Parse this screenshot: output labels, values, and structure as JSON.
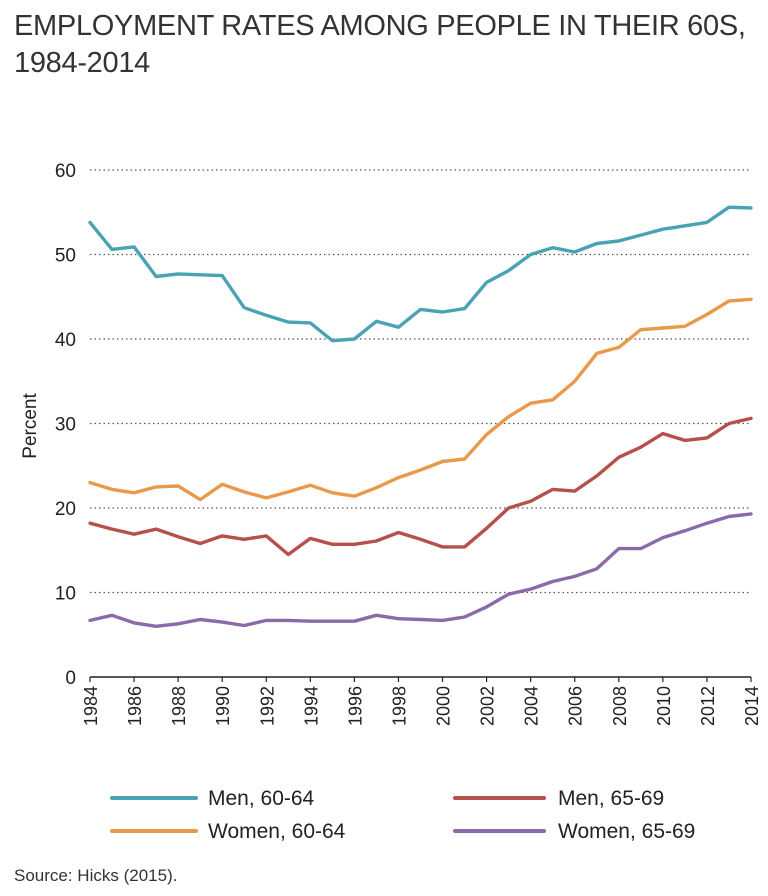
{
  "title": "EMPLOYMENT RATES AMONG PEOPLE IN THEIR 60S, 1984-2014",
  "source": "Source: Hicks (2015).",
  "chart_data": {
    "type": "line",
    "title": "EMPLOYMENT RATES AMONG PEOPLE IN THEIR 60S, 1984-2014",
    "xlabel": "",
    "ylabel": "Percent",
    "xlim": [
      1984,
      2014
    ],
    "ylim": [
      0,
      60
    ],
    "yticks": [
      0,
      10,
      20,
      30,
      40,
      50,
      60
    ],
    "xticks": [
      1984,
      1986,
      1988,
      1990,
      1992,
      1994,
      1996,
      1998,
      2000,
      2002,
      2004,
      2006,
      2008,
      2010,
      2012,
      2014
    ],
    "grid": "horizontal dotted",
    "legend": "bottom",
    "x": [
      1984,
      1985,
      1986,
      1987,
      1988,
      1989,
      1990,
      1991,
      1992,
      1993,
      1994,
      1995,
      1996,
      1997,
      1998,
      1999,
      2000,
      2001,
      2002,
      2003,
      2004,
      2005,
      2006,
      2007,
      2008,
      2009,
      2010,
      2011,
      2012,
      2013,
      2014
    ],
    "series": [
      {
        "name": "Men, 60-64",
        "color": "#4aa3b5",
        "values": [
          53.8,
          50.6,
          50.9,
          47.4,
          47.7,
          47.6,
          47.5,
          43.7,
          42.8,
          42.0,
          41.9,
          39.8,
          40.0,
          42.1,
          41.4,
          43.5,
          43.2,
          43.6,
          46.7,
          48.1,
          50.0,
          50.8,
          50.3,
          51.3,
          51.6,
          52.3,
          53.0,
          53.4,
          53.8,
          55.6,
          55.5
        ]
      },
      {
        "name": "Men, 65-69",
        "color": "#b5504a",
        "values": [
          18.2,
          17.5,
          16.9,
          17.5,
          16.6,
          15.8,
          16.7,
          16.3,
          16.7,
          14.5,
          16.4,
          15.7,
          15.7,
          16.1,
          17.1,
          16.3,
          15.4,
          15.4,
          17.6,
          20.0,
          20.8,
          22.2,
          22.0,
          23.8,
          26.0,
          27.2,
          28.8,
          28.0,
          28.3,
          30.0,
          30.6
        ]
      },
      {
        "name": "Women, 60-64",
        "color": "#e89a4a",
        "values": [
          23.0,
          22.2,
          21.8,
          22.5,
          22.6,
          21.0,
          22.8,
          21.9,
          21.2,
          21.9,
          22.7,
          21.8,
          21.4,
          22.4,
          23.6,
          24.5,
          25.5,
          25.8,
          28.7,
          30.8,
          32.4,
          32.8,
          35.0,
          38.3,
          39.0,
          41.1,
          41.3,
          41.5,
          42.9,
          44.5,
          44.7
        ]
      },
      {
        "name": "Women, 65-69",
        "color": "#8a6aa8",
        "values": [
          6.7,
          7.3,
          6.4,
          6.0,
          6.3,
          6.8,
          6.5,
          6.1,
          6.7,
          6.7,
          6.6,
          6.6,
          6.6,
          7.3,
          6.9,
          6.8,
          6.7,
          7.1,
          8.3,
          9.8,
          10.4,
          11.3,
          11.9,
          12.8,
          15.2,
          15.2,
          16.5,
          17.3,
          18.2,
          19.0,
          19.3
        ]
      }
    ],
    "legend_order": [
      0,
      1,
      2,
      3
    ]
  }
}
